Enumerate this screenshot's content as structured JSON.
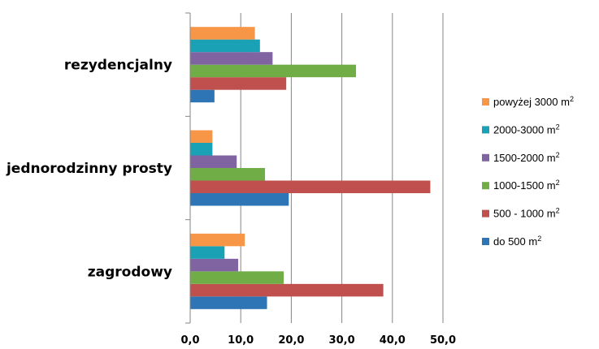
{
  "chart_data": {
    "type": "bar",
    "orientation": "horizontal",
    "categories": [
      "rezydencjalny",
      "jednorodzinny prosty",
      "zagrodowy"
    ],
    "series": [
      {
        "name": "do 500 m²",
        "color": "#2E75B6",
        "values": [
          4.8,
          19.5,
          15.2
        ]
      },
      {
        "name": "500 - 1000 m²",
        "color": "#C0504D",
        "values": [
          19.0,
          47.5,
          38.2
        ]
      },
      {
        "name": "1000-1500 m²",
        "color": "#70AD47",
        "values": [
          32.8,
          14.8,
          18.5
        ]
      },
      {
        "name": "1500-2000 m²",
        "color": "#8064A2",
        "values": [
          16.3,
          9.2,
          9.5
        ]
      },
      {
        "name": "2000-3000 m²",
        "color": "#1AA1B5",
        "values": [
          13.8,
          4.4,
          6.8
        ]
      },
      {
        "name": "powyżej 3000 m²",
        "color": "#F79646",
        "values": [
          12.8,
          4.4,
          10.8
        ]
      }
    ],
    "xlim": [
      0,
      50
    ],
    "xticks": [
      "0,0",
      "10,0",
      "20,0",
      "30,0",
      "40,0",
      "50,0"
    ],
    "grid": true,
    "legend_position": "right",
    "legend_order": [
      "powyżej 3000 m²",
      "2000-3000 m²",
      "1500-2000 m²",
      "1000-1500 m²",
      "500 - 1000 m²",
      "do 500 m²"
    ]
  }
}
